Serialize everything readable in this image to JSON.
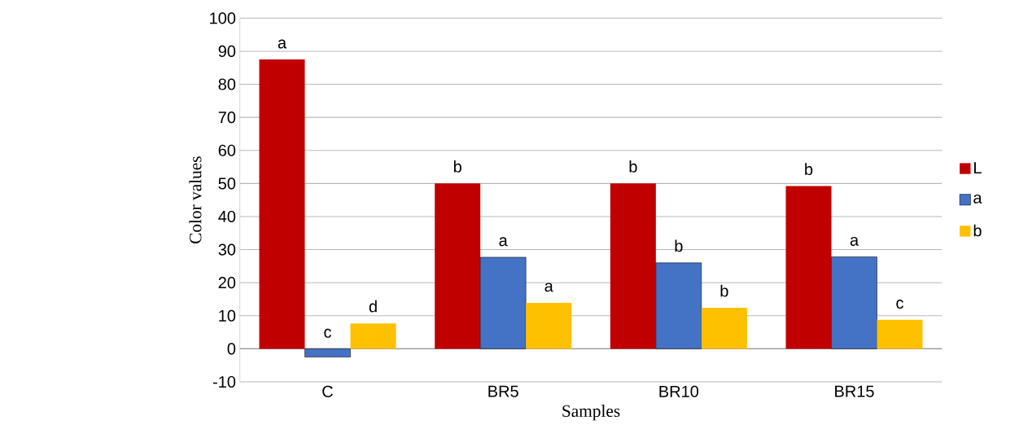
{
  "chart_data": {
    "type": "bar",
    "xlabel": "Samples",
    "ylabel": "Color values",
    "categories": [
      "C",
      "BR5",
      "BR10",
      "BR15"
    ],
    "series": [
      {
        "name": "L",
        "color": "#c00000",
        "values": [
          87.5,
          50.0,
          50.0,
          49.2
        ],
        "value_labels": [
          "a",
          "b",
          "b",
          "b"
        ]
      },
      {
        "name": "a",
        "color": "#4472c4",
        "values": [
          -2.5,
          27.7,
          26.0,
          27.8
        ],
        "value_labels": [
          "c",
          "a",
          "b",
          "a"
        ]
      },
      {
        "name": "b",
        "color": "#ffc000",
        "values": [
          7.7,
          13.9,
          12.4,
          8.8
        ],
        "value_labels": [
          "d",
          "a",
          "b",
          "c"
        ]
      }
    ],
    "ylim": [
      -10,
      100
    ],
    "yticks": [
      -10,
      0,
      10,
      20,
      30,
      40,
      50,
      60,
      70,
      80,
      90,
      100
    ],
    "grid": "y",
    "legend": "right"
  }
}
